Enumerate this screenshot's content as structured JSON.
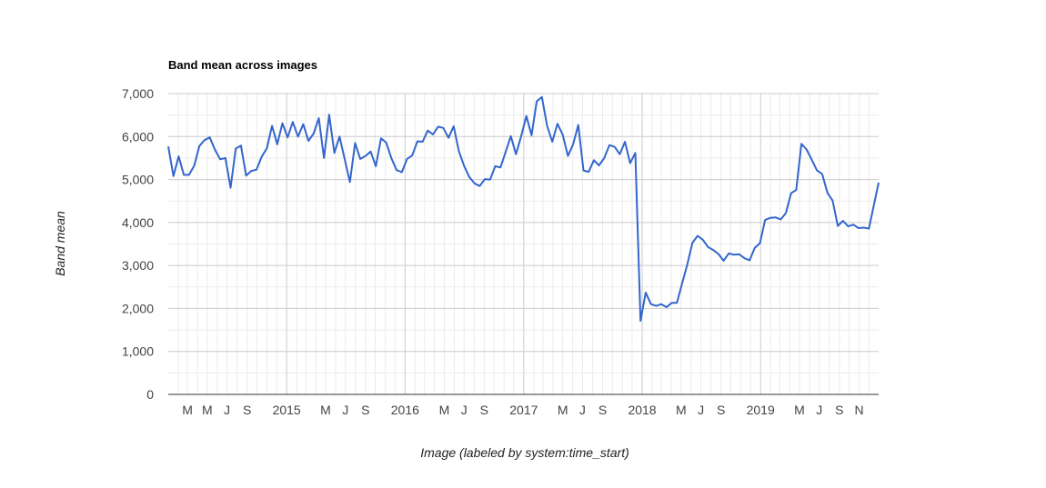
{
  "chart_data": {
    "type": "line",
    "title": "Band mean across images",
    "xlabel": "Image (labeled by system:time_start)",
    "ylabel": "Band mean",
    "ylim": [
      0,
      7000
    ],
    "y_ticks": [
      "0",
      "1,000",
      "2,000",
      "3,000",
      "4,000",
      "5,000",
      "6,000",
      "7,000"
    ],
    "y_tick_values": [
      0,
      1000,
      2000,
      3000,
      4000,
      5000,
      6000,
      7000
    ],
    "x_range": [
      "2014-01-01",
      "2019-12-31"
    ],
    "x_ticks": [
      {
        "label": "M",
        "date": "2014-03-01"
      },
      {
        "label": "M",
        "date": "2014-05-01"
      },
      {
        "label": "J",
        "date": "2014-07-01"
      },
      {
        "label": "S",
        "date": "2014-09-01"
      },
      {
        "label": "2015",
        "date": "2015-01-01"
      },
      {
        "label": "M",
        "date": "2015-05-01"
      },
      {
        "label": "J",
        "date": "2015-07-01"
      },
      {
        "label": "S",
        "date": "2015-09-01"
      },
      {
        "label": "2016",
        "date": "2016-01-01"
      },
      {
        "label": "M",
        "date": "2016-05-01"
      },
      {
        "label": "J",
        "date": "2016-07-01"
      },
      {
        "label": "S",
        "date": "2016-09-01"
      },
      {
        "label": "2017",
        "date": "2017-01-01"
      },
      {
        "label": "M",
        "date": "2017-05-01"
      },
      {
        "label": "J",
        "date": "2017-07-01"
      },
      {
        "label": "S",
        "date": "2017-09-01"
      },
      {
        "label": "2018",
        "date": "2018-01-01"
      },
      {
        "label": "M",
        "date": "2018-05-01"
      },
      {
        "label": "J",
        "date": "2018-07-01"
      },
      {
        "label": "S",
        "date": "2018-09-01"
      },
      {
        "label": "2019",
        "date": "2019-01-01"
      },
      {
        "label": "M",
        "date": "2019-05-01"
      },
      {
        "label": "J",
        "date": "2019-07-01"
      },
      {
        "label": "S",
        "date": "2019-09-01"
      },
      {
        "label": "N",
        "date": "2019-11-01"
      }
    ],
    "grid": true,
    "legend": "none",
    "series": [
      {
        "color": "#3366cc",
        "points": [
          [
            "2014-01-01",
            5770
          ],
          [
            "2014-01-17",
            5080
          ],
          [
            "2014-02-02",
            5540
          ],
          [
            "2014-02-18",
            5110
          ],
          [
            "2014-03-06",
            5110
          ],
          [
            "2014-03-22",
            5320
          ],
          [
            "2014-04-07",
            5780
          ],
          [
            "2014-04-23",
            5920
          ],
          [
            "2014-05-09",
            5980
          ],
          [
            "2014-05-25",
            5690
          ],
          [
            "2014-06-10",
            5470
          ],
          [
            "2014-06-26",
            5500
          ],
          [
            "2014-07-12",
            4810
          ],
          [
            "2014-07-28",
            5720
          ],
          [
            "2014-08-13",
            5790
          ],
          [
            "2014-08-29",
            5090
          ],
          [
            "2014-09-14",
            5200
          ],
          [
            "2014-09-30",
            5230
          ],
          [
            "2014-10-16",
            5530
          ],
          [
            "2014-11-01",
            5730
          ],
          [
            "2014-11-17",
            6250
          ],
          [
            "2014-12-03",
            5820
          ],
          [
            "2014-12-19",
            6310
          ],
          [
            "2015-01-04",
            5980
          ],
          [
            "2015-01-20",
            6340
          ],
          [
            "2015-02-05",
            6000
          ],
          [
            "2015-02-21",
            6290
          ],
          [
            "2015-03-09",
            5900
          ],
          [
            "2015-03-25",
            6070
          ],
          [
            "2015-04-10",
            6430
          ],
          [
            "2015-04-26",
            5500
          ],
          [
            "2015-05-12",
            6510
          ],
          [
            "2015-05-28",
            5620
          ],
          [
            "2015-06-13",
            6000
          ],
          [
            "2015-06-29",
            5470
          ],
          [
            "2015-07-15",
            4940
          ],
          [
            "2015-07-31",
            5850
          ],
          [
            "2015-08-16",
            5480
          ],
          [
            "2015-09-01",
            5550
          ],
          [
            "2015-09-17",
            5650
          ],
          [
            "2015-10-03",
            5310
          ],
          [
            "2015-10-19",
            5960
          ],
          [
            "2015-11-04",
            5860
          ],
          [
            "2015-11-20",
            5490
          ],
          [
            "2015-12-06",
            5220
          ],
          [
            "2015-12-22",
            5170
          ],
          [
            "2016-01-07",
            5480
          ],
          [
            "2016-01-23",
            5560
          ],
          [
            "2016-02-08",
            5890
          ],
          [
            "2016-02-24",
            5880
          ],
          [
            "2016-03-11",
            6140
          ],
          [
            "2016-03-27",
            6050
          ],
          [
            "2016-04-12",
            6230
          ],
          [
            "2016-04-28",
            6200
          ],
          [
            "2016-05-14",
            5970
          ],
          [
            "2016-05-30",
            6240
          ],
          [
            "2016-06-15",
            5660
          ],
          [
            "2016-07-01",
            5320
          ],
          [
            "2016-07-17",
            5060
          ],
          [
            "2016-08-02",
            4910
          ],
          [
            "2016-08-18",
            4850
          ],
          [
            "2016-09-03",
            5010
          ],
          [
            "2016-09-19",
            5000
          ],
          [
            "2016-10-05",
            5310
          ],
          [
            "2016-10-21",
            5280
          ],
          [
            "2016-11-06",
            5640
          ],
          [
            "2016-11-22",
            6010
          ],
          [
            "2016-12-08",
            5590
          ],
          [
            "2016-12-24",
            6010
          ],
          [
            "2017-01-09",
            6480
          ],
          [
            "2017-01-25",
            6030
          ],
          [
            "2017-02-10",
            6820
          ],
          [
            "2017-02-26",
            6920
          ],
          [
            "2017-03-14",
            6250
          ],
          [
            "2017-03-30",
            5880
          ],
          [
            "2017-04-15",
            6300
          ],
          [
            "2017-05-01",
            6040
          ],
          [
            "2017-05-17",
            5550
          ],
          [
            "2017-06-02",
            5820
          ],
          [
            "2017-06-18",
            6270
          ],
          [
            "2017-07-04",
            5210
          ],
          [
            "2017-07-20",
            5180
          ],
          [
            "2017-08-05",
            5450
          ],
          [
            "2017-08-21",
            5330
          ],
          [
            "2017-09-06",
            5500
          ],
          [
            "2017-09-22",
            5800
          ],
          [
            "2017-10-08",
            5760
          ],
          [
            "2017-10-24",
            5590
          ],
          [
            "2017-11-09",
            5880
          ],
          [
            "2017-11-25",
            5380
          ],
          [
            "2017-12-11",
            5620
          ],
          [
            "2017-12-27",
            1710
          ],
          [
            "2018-01-12",
            2370
          ],
          [
            "2018-01-28",
            2100
          ],
          [
            "2018-02-13",
            2060
          ],
          [
            "2018-03-01",
            2100
          ],
          [
            "2018-03-17",
            2030
          ],
          [
            "2018-04-02",
            2130
          ],
          [
            "2018-04-18",
            2130
          ],
          [
            "2018-05-04",
            2580
          ],
          [
            "2018-05-20",
            3020
          ],
          [
            "2018-06-05",
            3530
          ],
          [
            "2018-06-21",
            3690
          ],
          [
            "2018-07-07",
            3600
          ],
          [
            "2018-07-23",
            3430
          ],
          [
            "2018-08-08",
            3360
          ],
          [
            "2018-08-24",
            3270
          ],
          [
            "2018-09-09",
            3110
          ],
          [
            "2018-09-25",
            3280
          ],
          [
            "2018-10-11",
            3250
          ],
          [
            "2018-10-27",
            3260
          ],
          [
            "2018-11-12",
            3170
          ],
          [
            "2018-11-28",
            3120
          ],
          [
            "2018-12-14",
            3410
          ],
          [
            "2018-12-30",
            3520
          ],
          [
            "2019-01-15",
            4060
          ],
          [
            "2019-01-31",
            4110
          ],
          [
            "2019-02-16",
            4120
          ],
          [
            "2019-03-04",
            4070
          ],
          [
            "2019-03-20",
            4220
          ],
          [
            "2019-04-05",
            4680
          ],
          [
            "2019-04-21",
            4760
          ],
          [
            "2019-05-07",
            5830
          ],
          [
            "2019-05-23",
            5700
          ],
          [
            "2019-06-08",
            5460
          ],
          [
            "2019-06-24",
            5210
          ],
          [
            "2019-07-10",
            5130
          ],
          [
            "2019-07-26",
            4690
          ],
          [
            "2019-08-11",
            4510
          ],
          [
            "2019-08-27",
            3920
          ],
          [
            "2019-09-12",
            4040
          ],
          [
            "2019-09-28",
            3910
          ],
          [
            "2019-10-14",
            3950
          ],
          [
            "2019-10-30",
            3870
          ],
          [
            "2019-11-15",
            3880
          ],
          [
            "2019-12-01",
            3860
          ],
          [
            "2019-12-31",
            4930
          ]
        ]
      }
    ]
  }
}
